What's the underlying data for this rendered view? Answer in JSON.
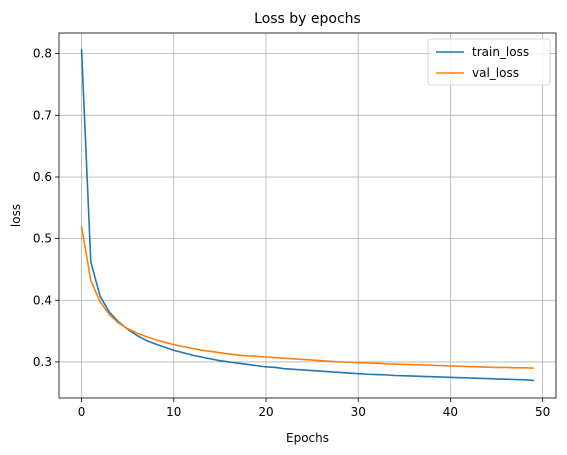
{
  "chart_data": {
    "type": "line",
    "title": "Loss by epochs",
    "xlabel": "Epochs",
    "ylabel": "loss",
    "xlim": [
      -2.45,
      51.45
    ],
    "ylim": [
      0.2415,
      0.8335
    ],
    "xticks": [
      0,
      10,
      20,
      30,
      40,
      50
    ],
    "yticks": [
      0.3,
      0.4,
      0.5,
      0.6,
      0.7,
      0.8
    ],
    "grid": true,
    "legend_position": "top-right",
    "x": [
      0,
      1,
      2,
      3,
      4,
      5,
      6,
      7,
      8,
      9,
      10,
      11,
      12,
      13,
      14,
      15,
      16,
      17,
      18,
      19,
      20,
      21,
      22,
      23,
      24,
      25,
      26,
      27,
      28,
      29,
      30,
      31,
      32,
      33,
      34,
      35,
      36,
      37,
      38,
      39,
      40,
      41,
      42,
      43,
      44,
      45,
      46,
      47,
      48,
      49
    ],
    "series": [
      {
        "name": "train_loss",
        "color": "#1f77b4",
        "values": [
          0.806,
          0.462,
          0.407,
          0.381,
          0.365,
          0.353,
          0.343,
          0.335,
          0.329,
          0.324,
          0.319,
          0.315,
          0.311,
          0.308,
          0.305,
          0.302,
          0.3,
          0.298,
          0.296,
          0.294,
          0.292,
          0.291,
          0.289,
          0.288,
          0.287,
          0.286,
          0.285,
          0.284,
          0.283,
          0.282,
          0.281,
          0.28,
          0.2795,
          0.279,
          0.278,
          0.2775,
          0.277,
          0.2765,
          0.276,
          0.2755,
          0.275,
          0.2745,
          0.274,
          0.2735,
          0.273,
          0.2725,
          0.272,
          0.2715,
          0.271,
          0.27
        ]
      },
      {
        "name": "val_loss",
        "color": "#ff7f0e",
        "values": [
          0.519,
          0.432,
          0.398,
          0.377,
          0.363,
          0.354,
          0.347,
          0.341,
          0.336,
          0.332,
          0.328,
          0.325,
          0.322,
          0.319,
          0.317,
          0.315,
          0.313,
          0.311,
          0.31,
          0.309,
          0.308,
          0.307,
          0.306,
          0.305,
          0.304,
          0.303,
          0.302,
          0.301,
          0.3,
          0.2995,
          0.299,
          0.2985,
          0.298,
          0.297,
          0.2965,
          0.296,
          0.2955,
          0.295,
          0.2945,
          0.294,
          0.2935,
          0.293,
          0.2925,
          0.292,
          0.2915,
          0.291,
          0.291,
          0.2905,
          0.2905,
          0.29
        ]
      }
    ]
  }
}
